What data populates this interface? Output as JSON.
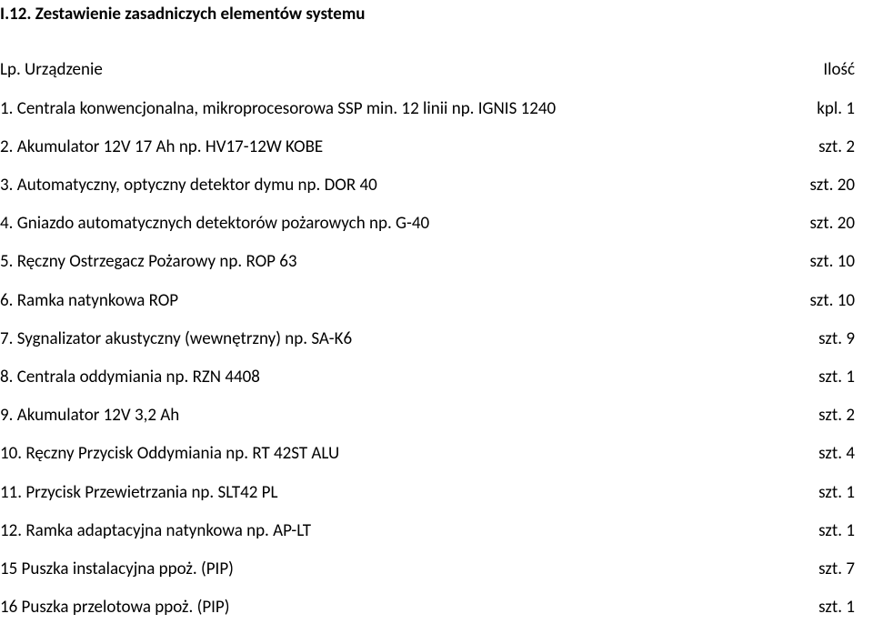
{
  "heading": "I.12. Zestawienie zasadniczych elementów systemu",
  "header": {
    "left": "Lp. Urządzenie",
    "right": "Ilość"
  },
  "rows": [
    {
      "left": "1. Centrala konwencjonalna, mikroprocesorowa  SSP min. 12 linii np. IGNIS 1240",
      "right": "kpl. 1"
    },
    {
      "left": "2. Akumulator 12V 17 Ah np. HV17-12W KOBE",
      "right": "szt. 2"
    },
    {
      "left": "3. Automatyczny, optyczny detektor dymu np. DOR 40",
      "right": "szt. 20"
    },
    {
      "left": "4. Gniazdo automatycznych detektorów pożarowych np. G-40",
      "right": "szt. 20"
    },
    {
      "left": "5. Ręczny Ostrzegacz Pożarowy np. ROP 63",
      "right": "szt. 10"
    },
    {
      "left": "6. Ramka natynkowa ROP",
      "right": "szt. 10"
    },
    {
      "left": "7. Sygnalizator akustyczny (wewnętrzny) np. SA-K6",
      "right": "szt. 9"
    },
    {
      "left": "8. Centrala oddymiania np. RZN 4408",
      "right": "szt. 1"
    },
    {
      "left": "9. Akumulator 12V 3,2 Ah",
      "right": "szt. 2"
    },
    {
      "left": "10. Ręczny Przycisk Oddymiania np. RT 42ST ALU",
      "right": "szt. 4"
    },
    {
      "left": "11. Przycisk Przewietrzania np. SLT42 PL",
      "right": "szt. 1"
    },
    {
      "left": "12. Ramka adaptacyjna natynkowa np. AP-LT",
      "right": "szt. 1"
    },
    {
      "left": "15 Puszka instalacyjna ppoż. (PIP)",
      "right": "szt. 7"
    },
    {
      "left": "16 Puszka przelotowa ppoż. (PIP)",
      "right": "szt. 1"
    }
  ],
  "colors": {
    "background": "#ffffff",
    "text": "#000000"
  },
  "typography": {
    "body_fontsize": 19,
    "heading_fontsize": 19,
    "heading_weight": "bold",
    "font_family": "Calibri"
  }
}
